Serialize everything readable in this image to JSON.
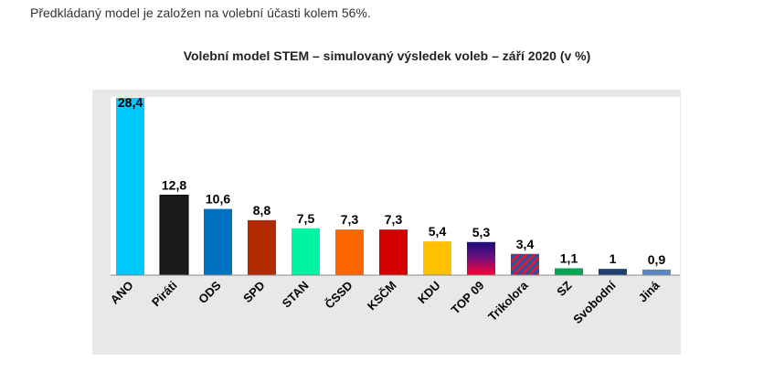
{
  "intro_text": "Předkládaný model je založen na volební účasti kolem 56%.",
  "chart_data": {
    "type": "bar",
    "title": "Volební model STEM – simulovaný výsledek voleb – září 2020 (v %)",
    "xlabel": "",
    "ylabel": "",
    "ylim": [
      0,
      30
    ],
    "grid": false,
    "legend": "none",
    "categories": [
      "ANO",
      "Piráti",
      "ODS",
      "SPD",
      "STAN",
      "ČSSD",
      "KSČM",
      "KDU",
      "TOP 09",
      "Trikolora",
      "SZ",
      "Svobodní",
      "Jiná"
    ],
    "values": [
      28.4,
      12.8,
      10.6,
      8.8,
      7.5,
      7.3,
      7.3,
      5.4,
      5.3,
      3.4,
      1.1,
      1,
      0.9
    ],
    "value_labels": [
      "28,4",
      "12,8",
      "10,6",
      "8,8",
      "7,5",
      "7,3",
      "7,3",
      "5,4",
      "5,3",
      "3,4",
      "1,1",
      "1",
      "0,9"
    ],
    "colors": [
      "#00c8ff",
      "#1a1a1a",
      "#0070c0",
      "#b22a00",
      "#00f5a0",
      "#ff6600",
      "#d40000",
      "#ffc000",
      "top09",
      "trikolora",
      "#00a651",
      "#1f3f6e",
      "#5b87c5"
    ]
  }
}
